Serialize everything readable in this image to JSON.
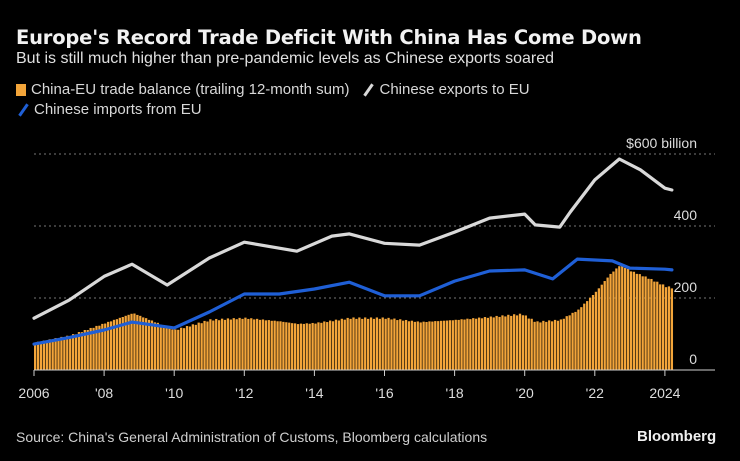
{
  "title": "Europe's Record Trade Deficit With China Has Come Down",
  "subtitle": "But is still much higher than pre-pandemic levels as Chinese exports soared",
  "legend": {
    "balance": "China-EU trade balance (trailing 12-month sum)",
    "exports": "Chinese exports to EU",
    "imports": "Chinese imports from EU"
  },
  "source": "Source: China's General Administration of Customs, Bloomberg calculations",
  "brand": "Bloomberg",
  "colors": {
    "balance": "#f3a53a",
    "exports": "#d9d9d9",
    "imports": "#1f5fd6",
    "grid": "#777777"
  },
  "chart_data": {
    "type": "bar+line",
    "title": "Europe's Record Trade Deficit With China Has Come Down",
    "subtitle": "But is still much higher than pre-pandemic levels as Chinese exports soared",
    "xlabel": "",
    "ylabel": "$ billion",
    "xlim": [
      2006,
      2024.4
    ],
    "ylim": [
      0,
      600
    ],
    "y_ticks": [
      0,
      200,
      400,
      600
    ],
    "y_tick_labels": [
      "0",
      "200",
      "400",
      "$600 billion"
    ],
    "x_ticks": [
      2006,
      2008,
      2010,
      2012,
      2014,
      2016,
      2018,
      2020,
      2022,
      2024
    ],
    "x_tick_labels": [
      "2006",
      "'08",
      "'10",
      "'12",
      "'14",
      "'16",
      "'18",
      "'20",
      "'22",
      "2024"
    ],
    "grid": true,
    "legend_position": "top-left",
    "series": [
      {
        "name": "China-EU trade balance (trailing 12-month sum)",
        "kind": "bar",
        "x": [
          2006,
          2007,
          2008,
          2008.8,
          2009.5,
          2010,
          2011,
          2012,
          2013,
          2013.5,
          2014,
          2015,
          2016,
          2017,
          2018,
          2019,
          2019.9,
          2020.3,
          2021,
          2021.5,
          2022,
          2022.4,
          2022.7,
          2023,
          2023.5,
          2024,
          2024.2
        ],
        "values": [
          75,
          95,
          130,
          158,
          130,
          111,
          139,
          144,
          135,
          128,
          130,
          144,
          144,
          133,
          139,
          147,
          155,
          133,
          139,
          167,
          217,
          265,
          292,
          275,
          255,
          232,
          228
        ]
      },
      {
        "name": "Chinese exports to EU",
        "kind": "line",
        "x": [
          2006,
          2007,
          2008,
          2008.8,
          2009.8,
          2011,
          2012,
          2013.5,
          2014.5,
          2015,
          2016,
          2017,
          2018,
          2019,
          2020,
          2020.3,
          2021,
          2021.3,
          2022,
          2022.7,
          2023.3,
          2024,
          2024.2
        ],
        "values": [
          144,
          194,
          260,
          294,
          236,
          311,
          355,
          330,
          372,
          378,
          352,
          347,
          383,
          422,
          433,
          403,
          397,
          439,
          528,
          586,
          556,
          505,
          500
        ]
      },
      {
        "name": "Chinese imports from EU",
        "kind": "line",
        "x": [
          2006,
          2007,
          2008,
          2008.8,
          2010,
          2011,
          2012,
          2013,
          2014,
          2015,
          2016,
          2017,
          2018,
          2019,
          2020,
          2020.8,
          2021.5,
          2022.5,
          2023,
          2024,
          2024.2
        ],
        "values": [
          72,
          90,
          111,
          133,
          117,
          161,
          211,
          211,
          225,
          244,
          206,
          206,
          247,
          275,
          278,
          253,
          308,
          303,
          283,
          280,
          278
        ]
      }
    ]
  }
}
